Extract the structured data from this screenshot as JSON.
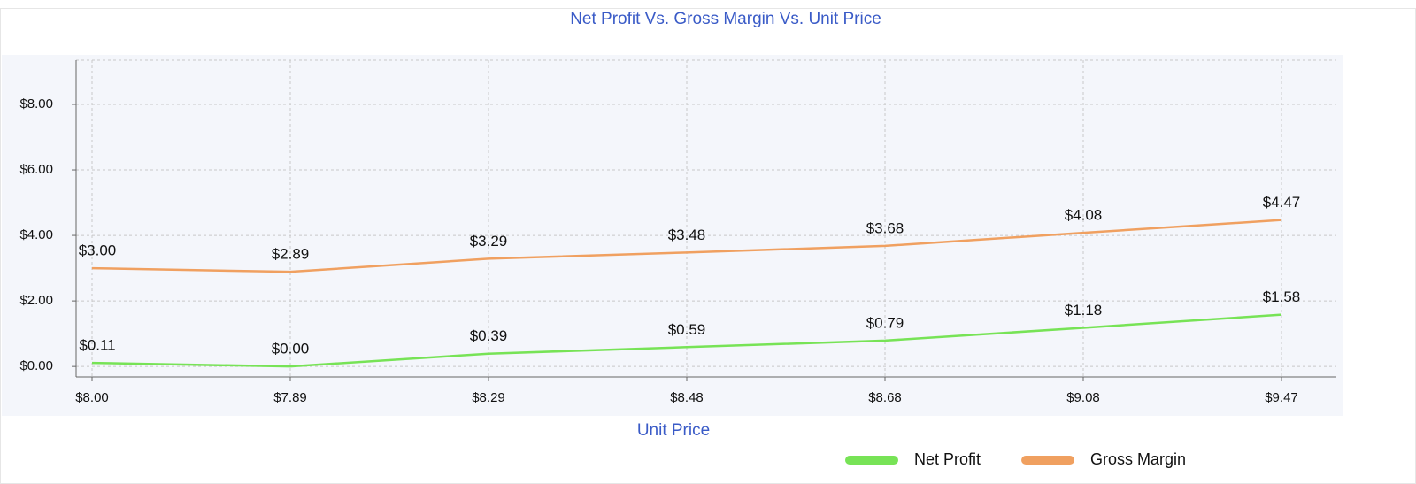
{
  "chart_data": {
    "type": "line",
    "title": "Net Profit Vs. Gross Margin Vs. Unit Price",
    "x_label": "Unit Price",
    "categories": [
      "$8.00",
      "$7.89",
      "$8.29",
      "$8.48",
      "$8.68",
      "$9.08",
      "$9.47"
    ],
    "series": [
      {
        "name": "Net Profit",
        "color": "#77e356",
        "values": [
          0.11,
          0.0,
          0.39,
          0.59,
          0.79,
          1.18,
          1.58
        ],
        "value_labels": [
          "$0.11",
          "$0.00",
          "$0.39",
          "$0.59",
          "$0.79",
          "$1.18",
          "$1.58"
        ]
      },
      {
        "name": "Gross Margin",
        "color": "#f0a060",
        "values": [
          3.0,
          2.89,
          3.29,
          3.48,
          3.68,
          4.08,
          4.47
        ],
        "value_labels": [
          "$3.00",
          "$2.89",
          "$3.29",
          "$3.48",
          "$3.68",
          "$4.08",
          "$4.47"
        ]
      }
    ],
    "ylim": [
      -0.32,
      9.35
    ],
    "yticks": [
      {
        "value": 0,
        "label": "$0.00"
      },
      {
        "value": 2,
        "label": "$2.00"
      },
      {
        "value": 4,
        "label": "$4.00"
      },
      {
        "value": 6,
        "label": "$6.00"
      },
      {
        "value": 8,
        "label": "$8.00"
      }
    ],
    "grid": true,
    "legend": "bottom-right"
  }
}
